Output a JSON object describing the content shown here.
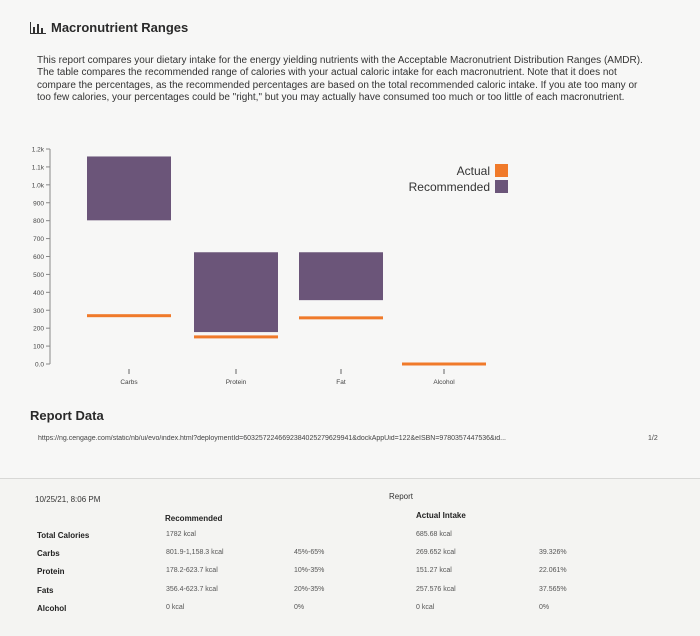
{
  "section": {
    "title": "Macronutrient Ranges",
    "intro": "This report compares your dietary intake for the energy yielding nutrients with the Acceptable Macronutrient Distribution Ranges (AMDR). The table compares the recommended range of calories with your actual caloric intake for each macronutrient. Note that it does not compare the percentages, as the recommended percentages are based on the total recommended caloric intake. If you ate too many or too few calories, your percentages could be \"right,\" but you may actually have consumed too much or too little of each macronutrient."
  },
  "chart_data": {
    "type": "bar",
    "title": "",
    "categories": [
      "Carbs",
      "Protein",
      "Fat",
      "Alcohol"
    ],
    "y_ticks": [
      "0.0",
      "100",
      "200",
      "300",
      "400",
      "500",
      "600",
      "700",
      "800",
      "900",
      "1.0k",
      "1.1k",
      "1.2k"
    ],
    "ylim": [
      0,
      1200
    ],
    "legend": {
      "position": "top-right",
      "entries": [
        "Actual",
        "Recommended"
      ]
    },
    "series": [
      {
        "name": "Recommended",
        "kind": "range",
        "color": "#6b5579",
        "ranges": [
          [
            801.9,
            1158.3
          ],
          [
            178.2,
            623.7
          ],
          [
            356.4,
            623.7
          ],
          [
            0,
            0
          ]
        ]
      },
      {
        "name": "Actual",
        "kind": "marker",
        "color": "#f07a2a",
        "values": [
          269.652,
          151.27,
          257.576,
          0
        ]
      }
    ]
  },
  "report": {
    "heading": "Report Data",
    "url": "https://ng.cengage.com/static/nb/ui/evo/index.html?deploymentId=6032572246692384025279629941&dockAppUid=122&eISBN=9780357447536&id...",
    "page_num": "1/2",
    "datetime": "10/25/21, 8:06 PM",
    "report_label": "Report",
    "col_recommended": "Recommended",
    "col_actual": "Actual Intake",
    "rows": [
      {
        "label": "Total Calories",
        "recommended": "1782 kcal",
        "pct_range": "",
        "actual": "685.68 kcal",
        "actual_pct": ""
      },
      {
        "label": "Carbs",
        "recommended": "801.9-1,158.3 kcal",
        "pct_range": "45%-65%",
        "actual": "269.652 kcal",
        "actual_pct": "39.326%"
      },
      {
        "label": "Protein",
        "recommended": "178.2-623.7 kcal",
        "pct_range": "10%-35%",
        "actual": "151.27 kcal",
        "actual_pct": "22.061%"
      },
      {
        "label": "Fats",
        "recommended": "356.4-623.7 kcal",
        "pct_range": "20%-35%",
        "actual": "257.576 kcal",
        "actual_pct": "37.565%"
      },
      {
        "label": "Alcohol",
        "recommended": "0 kcal",
        "pct_range": "0%",
        "actual": "0 kcal",
        "actual_pct": "0%"
      }
    ]
  }
}
